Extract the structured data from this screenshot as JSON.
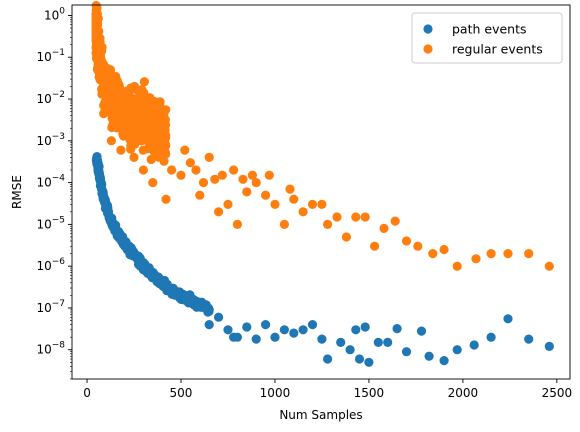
{
  "chart_data": {
    "type": "scatter",
    "xlabel": "Num Samples",
    "ylabel": "RMSE",
    "xlim": [
      -80,
      2570
    ],
    "ylim_log10": [
      -8.7,
      0.25
    ],
    "y_scale": "log",
    "x_ticks": [
      0,
      500,
      1000,
      1500,
      2000,
      2500
    ],
    "x_tick_labels": [
      "0",
      "500",
      "1000",
      "1500",
      "2000",
      "2500"
    ],
    "y_ticks_exp": [
      -8,
      -7,
      -6,
      -5,
      -4,
      -3,
      -2,
      -1,
      0
    ],
    "grid": false,
    "legend_position": "top-right",
    "series": [
      {
        "name": "path events",
        "color": "#1f77b4",
        "anchor_points": [
          [
            50,
            0.0004
          ],
          [
            55,
            0.0003
          ],
          [
            60,
            0.0002
          ],
          [
            70,
            0.00012
          ],
          [
            80,
            6e-05
          ],
          [
            100,
            3e-05
          ],
          [
            120,
            1.5e-05
          ],
          [
            150,
            8e-06
          ],
          [
            180,
            5e-06
          ],
          [
            200,
            3.5e-06
          ],
          [
            250,
            2e-06
          ],
          [
            300,
            1e-06
          ],
          [
            350,
            6e-07
          ],
          [
            400,
            4e-07
          ],
          [
            450,
            2.5e-07
          ],
          [
            500,
            1.8e-07
          ],
          [
            600,
            1.2e-07
          ],
          [
            700,
            8e-08
          ],
          [
            800,
            6e-08
          ],
          [
            900,
            4.5e-08
          ],
          [
            1000,
            3.5e-08
          ],
          [
            1100,
            3e-08
          ]
        ],
        "scatter_points": [
          [
            650,
            4e-08
          ],
          [
            700,
            6e-08
          ],
          [
            750,
            3e-08
          ],
          [
            780,
            2e-08
          ],
          [
            800,
            2e-08
          ],
          [
            850,
            3.5e-08
          ],
          [
            900,
            1.8e-08
          ],
          [
            950,
            4e-08
          ],
          [
            1000,
            2e-08
          ],
          [
            1050,
            3e-08
          ],
          [
            1100,
            2.5e-08
          ],
          [
            1150,
            3e-08
          ],
          [
            1200,
            4e-08
          ],
          [
            1250,
            1.8e-08
          ],
          [
            1280,
            6e-09
          ],
          [
            1350,
            1.5e-08
          ],
          [
            1400,
            1e-08
          ],
          [
            1430,
            3e-08
          ],
          [
            1450,
            6e-09
          ],
          [
            1480,
            3.5e-08
          ],
          [
            1500,
            5e-09
          ],
          [
            1550,
            1.5e-08
          ],
          [
            1600,
            1.5e-08
          ],
          [
            1650,
            3.2e-08
          ],
          [
            1700,
            9e-09
          ],
          [
            1780,
            2.8e-08
          ],
          [
            1820,
            7e-09
          ],
          [
            1900,
            5.5e-09
          ],
          [
            1970,
            1e-08
          ],
          [
            2060,
            1.3e-08
          ],
          [
            2150,
            2e-08
          ],
          [
            2240,
            5.5e-08
          ],
          [
            2350,
            1.8e-08
          ],
          [
            2460,
            1.2e-08
          ]
        ]
      },
      {
        "name": "regular events",
        "color": "#ff7f0e",
        "anchor_points": [
          [
            50,
            0.5
          ],
          [
            55,
            0.3
          ],
          [
            60,
            0.2
          ],
          [
            70,
            0.08
          ],
          [
            80,
            0.04
          ],
          [
            100,
            0.02
          ],
          [
            120,
            0.012
          ],
          [
            150,
            0.008
          ],
          [
            200,
            0.005
          ],
          [
            250,
            0.004
          ],
          [
            300,
            0.003
          ],
          [
            350,
            0.002
          ],
          [
            400,
            0.0015
          ],
          [
            450,
            0.001
          ]
        ],
        "scatter_points": [
          [
            180,
            0.0006
          ],
          [
            250,
            0.0004
          ],
          [
            300,
            0.0002
          ],
          [
            350,
            0.0001
          ],
          [
            420,
            4e-05
          ],
          [
            450,
            0.0002
          ],
          [
            500,
            0.00015
          ],
          [
            520,
            0.0006
          ],
          [
            550,
            0.0003
          ],
          [
            580,
            0.0002
          ],
          [
            600,
            5e-05
          ],
          [
            620,
            0.0001
          ],
          [
            650,
            0.0004
          ],
          [
            680,
            0.00012
          ],
          [
            700,
            2e-05
          ],
          [
            720,
            0.00015
          ],
          [
            750,
            3e-05
          ],
          [
            780,
            0.0002
          ],
          [
            800,
            1e-05
          ],
          [
            830,
            0.00012
          ],
          [
            850,
            6e-05
          ],
          [
            880,
            0.00015
          ],
          [
            900,
            0.0001
          ],
          [
            950,
            5e-05
          ],
          [
            970,
            0.00015
          ],
          [
            1000,
            3e-05
          ],
          [
            1050,
            1e-05
          ],
          [
            1080,
            7e-05
          ],
          [
            1100,
            4e-05
          ],
          [
            1150,
            2e-05
          ],
          [
            1200,
            3e-05
          ],
          [
            1250,
            3e-05
          ],
          [
            1280,
            1e-05
          ],
          [
            1330,
            1.5e-05
          ],
          [
            1380,
            5e-06
          ],
          [
            1430,
            1.5e-05
          ],
          [
            1480,
            1.5e-05
          ],
          [
            1530,
            3e-06
          ],
          [
            1580,
            8e-06
          ],
          [
            1640,
            1.2e-05
          ],
          [
            1700,
            4e-06
          ],
          [
            1760,
            3e-06
          ],
          [
            1840,
            2e-06
          ],
          [
            1900,
            2.5e-06
          ],
          [
            1970,
            1e-06
          ],
          [
            2070,
            1.5e-06
          ],
          [
            2150,
            2e-06
          ],
          [
            2240,
            2e-06
          ],
          [
            2350,
            2e-06
          ],
          [
            2460,
            1e-06
          ]
        ]
      }
    ]
  }
}
